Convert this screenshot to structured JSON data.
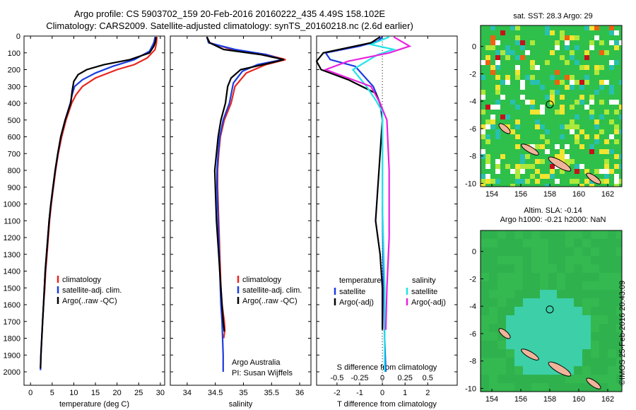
{
  "header": {
    "line1": "Argo profile: CS 5903702_159 20-Feb-2016 20160222_435 4.49S 158.102E",
    "line2": "Climatology: CARS2009. Satellite-adjusted climatology: synTS_20160218.nc (2.6d earlier)"
  },
  "colors": {
    "clim": "#e8261f",
    "sat": "#1c3ce0",
    "argo": "#000000",
    "sal_sat": "#22e4e8",
    "sal_argo": "#e822e0"
  },
  "chart_data": [
    {
      "type": "line",
      "xlabel": "temperature (deg C)",
      "ylabel": "",
      "xlim": [
        -1.5,
        31
      ],
      "ylim": [
        2080,
        0
      ],
      "xticks": [
        0,
        5,
        10,
        15,
        20,
        25,
        30
      ],
      "yticks": [
        0,
        100,
        200,
        300,
        400,
        500,
        600,
        700,
        800,
        900,
        1000,
        1100,
        1200,
        1300,
        1400,
        1500,
        1600,
        1700,
        1800,
        1900,
        2000
      ],
      "legend": [
        "climatology",
        "satellite-adj. clim.",
        "Argo(..raw -QC)"
      ],
      "series": [
        {
          "name": "climatology",
          "color": "clim",
          "points": [
            [
              29.2,
              5
            ],
            [
              29.1,
              40
            ],
            [
              28.8,
              80
            ],
            [
              27,
              130
            ],
            [
              24,
              170
            ],
            [
              20,
              200
            ],
            [
              15,
              250
            ],
            [
              12,
              300
            ],
            [
              10.5,
              350
            ],
            [
              9.5,
              400
            ],
            [
              8.2,
              500
            ],
            [
              7.2,
              600
            ],
            [
              6.4,
              700
            ],
            [
              5.8,
              800
            ],
            [
              5.3,
              900
            ],
            [
              4.8,
              1000
            ],
            [
              4.4,
              1100
            ],
            [
              4.1,
              1200
            ],
            [
              3.8,
              1300
            ],
            [
              3.5,
              1400
            ],
            [
              3.3,
              1500
            ],
            [
              3.0,
              1600
            ],
            [
              2.8,
              1700
            ],
            [
              2.6,
              1800
            ]
          ]
        },
        {
          "name": "satellite-adj. clim.",
          "color": "sat",
          "points": [
            [
              28.8,
              5
            ],
            [
              28.5,
              40
            ],
            [
              27.5,
              90
            ],
            [
              24,
              140
            ],
            [
              19,
              180
            ],
            [
              15,
              220
            ],
            [
              12,
              260
            ],
            [
              10.2,
              300
            ],
            [
              9.6,
              350
            ],
            [
              9.2,
              400
            ],
            [
              8,
              500
            ],
            [
              7,
              600
            ],
            [
              6.3,
              700
            ],
            [
              5.7,
              800
            ],
            [
              5.2,
              900
            ],
            [
              4.7,
              1000
            ],
            [
              4.3,
              1100
            ],
            [
              4,
              1200
            ],
            [
              3.7,
              1300
            ],
            [
              3.4,
              1400
            ],
            [
              3.2,
              1500
            ],
            [
              3,
              1600
            ],
            [
              2.8,
              1700
            ],
            [
              2.6,
              1800
            ],
            [
              2.4,
              1900
            ],
            [
              2.3,
              1990
            ]
          ]
        },
        {
          "name": "Argo(..raw -QC)",
          "color": "argo",
          "points": [
            [
              29,
              5
            ],
            [
              28.9,
              30
            ],
            [
              28.5,
              60
            ],
            [
              27.5,
              100
            ],
            [
              23,
              140
            ],
            [
              17,
              170
            ],
            [
              13,
              200
            ],
            [
              11,
              230
            ],
            [
              10,
              270
            ],
            [
              9.6,
              330
            ],
            [
              9.3,
              400
            ],
            [
              8,
              500
            ],
            [
              7,
              600
            ],
            [
              6.3,
              700
            ],
            [
              5.7,
              800
            ],
            [
              5.2,
              900
            ],
            [
              4.7,
              1000
            ],
            [
              4.3,
              1100
            ],
            [
              4,
              1200
            ],
            [
              3.7,
              1300
            ],
            [
              3.4,
              1400
            ],
            [
              3.2,
              1500
            ],
            [
              3,
              1600
            ],
            [
              2.8,
              1700
            ],
            [
              2.6,
              1800
            ],
            [
              2.4,
              1900
            ],
            [
              2.3,
              1980
            ]
          ]
        }
      ]
    },
    {
      "type": "line",
      "xlabel": "salinity",
      "ylabel": "",
      "xlim": [
        33.7,
        36.2
      ],
      "ylim": [
        2080,
        0
      ],
      "xticks": [
        34,
        34.5,
        35,
        35.5,
        36
      ],
      "legend": [
        "climatology",
        "satellite-adj. clim.",
        "Argo(..raw -QC)"
      ],
      "annotation": [
        "Argo Australia",
        "PI: Susan Wijffels"
      ],
      "series": [
        {
          "name": "climatology",
          "color": "clim",
          "points": [
            [
              34.35,
              5
            ],
            [
              34.4,
              40
            ],
            [
              34.8,
              80
            ],
            [
              35.4,
              110
            ],
            [
              35.75,
              140
            ],
            [
              35.4,
              170
            ],
            [
              35.05,
              220
            ],
            [
              34.85,
              300
            ],
            [
              34.78,
              400
            ],
            [
              34.66,
              500
            ],
            [
              34.59,
              600
            ],
            [
              34.56,
              700
            ],
            [
              34.54,
              800
            ],
            [
              34.54,
              900
            ],
            [
              34.55,
              1000
            ],
            [
              34.56,
              1100
            ],
            [
              34.57,
              1200
            ],
            [
              34.58,
              1300
            ],
            [
              34.59,
              1400
            ],
            [
              34.6,
              1500
            ],
            [
              34.62,
              1600
            ],
            [
              34.66,
              1700
            ],
            [
              34.67,
              1750
            ],
            [
              34.65,
              1800
            ]
          ]
        },
        {
          "name": "satellite-adj. clim.",
          "color": "sat",
          "points": [
            [
              34.35,
              5
            ],
            [
              34.38,
              40
            ],
            [
              34.85,
              80
            ],
            [
              35.4,
              110
            ],
            [
              35.7,
              140
            ],
            [
              35.25,
              170
            ],
            [
              34.98,
              210
            ],
            [
              34.82,
              280
            ],
            [
              34.75,
              400
            ],
            [
              34.64,
              500
            ],
            [
              34.58,
              600
            ],
            [
              34.55,
              700
            ],
            [
              34.53,
              800
            ],
            [
              34.53,
              900
            ],
            [
              34.54,
              1000
            ],
            [
              34.55,
              1100
            ],
            [
              34.56,
              1200
            ],
            [
              34.57,
              1300
            ],
            [
              34.58,
              1400
            ],
            [
              34.59,
              1500
            ],
            [
              34.6,
              1600
            ],
            [
              34.62,
              1700
            ],
            [
              34.63,
              1800
            ],
            [
              34.64,
              1900
            ],
            [
              34.64,
              2000
            ]
          ]
        },
        {
          "name": "Argo(..raw -QC)",
          "color": "argo",
          "points": [
            [
              34.35,
              5
            ],
            [
              34.4,
              40
            ],
            [
              34.65,
              80
            ],
            [
              35.3,
              110
            ],
            [
              35.72,
              140
            ],
            [
              35.35,
              170
            ],
            [
              34.95,
              200
            ],
            [
              34.78,
              250
            ],
            [
              34.72,
              300
            ],
            [
              34.68,
              400
            ],
            [
              34.6,
              500
            ],
            [
              34.55,
              600
            ],
            [
              34.52,
              700
            ],
            [
              34.49,
              800
            ],
            [
              34.5,
              900
            ],
            [
              34.51,
              1000
            ],
            [
              34.52,
              1100
            ],
            [
              34.54,
              1200
            ],
            [
              34.56,
              1300
            ],
            [
              34.58,
              1400
            ],
            [
              34.6,
              1500
            ],
            [
              34.62,
              1600
            ],
            [
              34.64,
              1700
            ],
            [
              34.66,
              1760
            ]
          ]
        }
      ]
    },
    {
      "type": "line",
      "xlabel": "T difference from climatology",
      "toplabel": "S difference from climatology",
      "xlim": [
        -2.9,
        3.3
      ],
      "ylim": [
        2080,
        0
      ],
      "xticks": [
        -2,
        -1,
        0,
        1,
        2
      ],
      "stick_labels": [
        "-0.5",
        "-0.25",
        "0",
        "0.25",
        "0.5"
      ],
      "stick_values": [
        -2,
        -1,
        0,
        1,
        2
      ],
      "legend_left": {
        "title": "temperature",
        "items": [
          "satellite",
          "Argo(-adj)"
        ]
      },
      "legend_right": {
        "title": "salinity",
        "items": [
          "satellite",
          "Argo(-adj)"
        ]
      },
      "series": [
        {
          "name": "T satellite",
          "color": "sat",
          "points": [
            [
              0,
              5
            ],
            [
              -0.2,
              30
            ],
            [
              -1.0,
              60
            ],
            [
              -2.5,
              100
            ],
            [
              -2.3,
              140
            ],
            [
              -1.2,
              180
            ],
            [
              -0.4,
              300
            ],
            [
              -0.1,
              400
            ],
            [
              0,
              500
            ],
            [
              0,
              700
            ],
            [
              0,
              1000
            ],
            [
              0.05,
              1500
            ],
            [
              0.1,
              1800
            ],
            [
              0.15,
              2000
            ]
          ]
        },
        {
          "name": "T Argo",
          "color": "argo",
          "points": [
            [
              -0.1,
              5
            ],
            [
              -0.5,
              40
            ],
            [
              -2.6,
              100
            ],
            [
              -2.9,
              150
            ],
            [
              -2.7,
              200
            ],
            [
              -1.5,
              260
            ],
            [
              -0.3,
              340
            ],
            [
              -0.05,
              420
            ],
            [
              0,
              500
            ],
            [
              -0.1,
              700
            ],
            [
              -0.2,
              900
            ],
            [
              -0.3,
              1100
            ],
            [
              -0.1,
              1300
            ],
            [
              0,
              1500
            ],
            [
              0,
              1750
            ]
          ]
        },
        {
          "name": "S satellite",
          "color": "sal_sat",
          "points": [
            [
              0.3,
              5
            ],
            [
              -0.5,
              50
            ],
            [
              0.5,
              80
            ],
            [
              -0.2,
              110
            ],
            [
              -1.3,
              200
            ],
            [
              -0.7,
              300
            ],
            [
              -0.3,
              380
            ],
            [
              0,
              450
            ],
            [
              0,
              1000
            ],
            [
              0.1,
              1500
            ],
            [
              0.1,
              2000
            ]
          ]
        },
        {
          "name": "S Argo",
          "color": "sal_argo",
          "points": [
            [
              0.5,
              5
            ],
            [
              1.2,
              60
            ],
            [
              0.3,
              100
            ],
            [
              -1.5,
              150
            ],
            [
              -2.5,
              200
            ],
            [
              -0.5,
              300
            ],
            [
              -0.1,
              400
            ],
            [
              0.2,
              500
            ],
            [
              0.3,
              800
            ],
            [
              0.3,
              1200
            ],
            [
              0.2,
              1500
            ],
            [
              0.15,
              1750
            ]
          ]
        }
      ]
    }
  ],
  "maps": {
    "sst_title": "sat. SST: 28.3 Argo: 29",
    "sla_title1": "Altim. SLA: -0.14",
    "sla_title2": "Argo h1000: -0.21 h2000: NaN",
    "xticks": [
      "154",
      "156",
      "158",
      "160",
      "162"
    ],
    "yticks": [
      "0",
      "-2",
      "-4",
      "-6",
      "-8",
      "-10"
    ],
    "stamp": "©IMOS 25-Feb-2016 20:43:09"
  }
}
